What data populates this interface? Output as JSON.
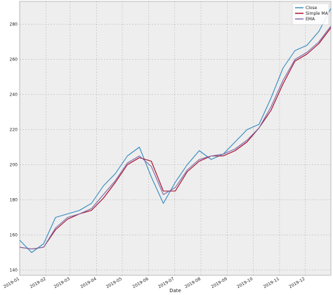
{
  "chart_data": {
    "type": "line",
    "title": "",
    "xlabel": "Date",
    "ylabel": "",
    "grid": true,
    "legend_position": "top-right",
    "x_range": [
      "2019-01-01",
      "2019-12-31"
    ],
    "ylim": [
      137,
      293
    ],
    "x_ticks": [
      "2019-01",
      "2019-02",
      "2019-03",
      "2019-04",
      "2019-05",
      "2019-06",
      "2019-07",
      "2019-08",
      "2019-09",
      "2019-10",
      "2019-11",
      "2019-12"
    ],
    "y_ticks": [
      140,
      160,
      180,
      200,
      220,
      240,
      260,
      280
    ],
    "x": [
      "2019-01-01",
      "2019-01-15",
      "2019-01-29",
      "2019-02-12",
      "2019-02-26",
      "2019-03-12",
      "2019-03-26",
      "2019-04-09",
      "2019-04-23",
      "2019-05-07",
      "2019-05-21",
      "2019-06-04",
      "2019-06-18",
      "2019-07-02",
      "2019-07-16",
      "2019-07-30",
      "2019-08-13",
      "2019-08-27",
      "2019-09-10",
      "2019-09-24",
      "2019-10-08",
      "2019-10-22",
      "2019-11-05",
      "2019-11-19",
      "2019-12-03",
      "2019-12-17",
      "2019-12-31"
    ],
    "series": [
      {
        "name": "Close",
        "color": "#348ABD",
        "values": [
          157,
          150,
          155,
          170,
          172,
          174,
          178,
          188,
          195,
          205,
          210,
          193,
          178,
          190,
          200,
          208,
          203,
          206,
          213,
          220,
          223,
          238,
          255,
          265,
          268,
          276,
          289
        ]
      },
      {
        "name": "Simple MA",
        "color": "#A60628",
        "values": [
          153,
          152,
          153,
          163,
          169,
          172,
          174,
          181,
          190,
          200,
          204,
          202,
          185,
          185,
          196,
          202,
          205,
          205,
          208,
          213,
          221,
          231,
          246,
          259,
          263,
          269,
          278
        ]
      },
      {
        "name": "EMA",
        "color": "#7A68A6",
        "values": [
          153,
          152,
          153,
          164,
          170,
          172,
          175,
          183,
          191,
          201,
          205,
          199,
          183,
          187,
          197,
          203,
          205,
          206,
          209,
          214,
          221,
          233,
          248,
          260,
          264,
          270,
          279
        ]
      }
    ]
  }
}
